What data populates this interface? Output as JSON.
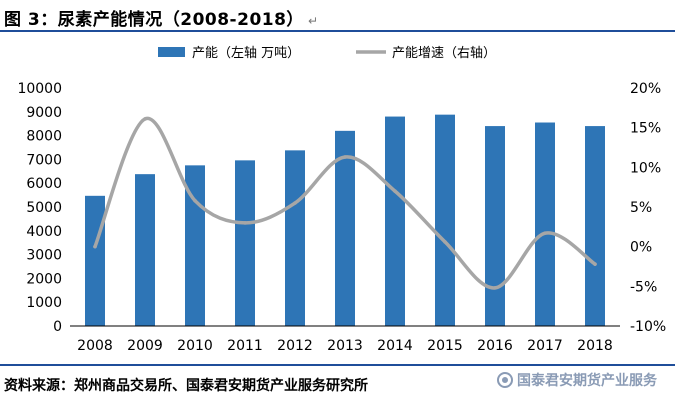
{
  "header": {
    "title": "图 3：尿素产能情况（2008-2018）"
  },
  "footer": {
    "source": "资料来源：郑州商品交易所、国泰君安期货产业服务研究所",
    "watermark": "国泰君安期货产业服务"
  },
  "chart_data": {
    "type": "bar+line",
    "title": "",
    "categories": [
      "2008",
      "2009",
      "2010",
      "2011",
      "2012",
      "2013",
      "2014",
      "2015",
      "2016",
      "2017",
      "2018"
    ],
    "series": [
      {
        "name": "产能（左轴 万吨）",
        "type": "bar",
        "axis": "left",
        "color": "#2e75b6",
        "values": [
          5470,
          6380,
          6750,
          6960,
          7380,
          8200,
          8800,
          8880,
          8400,
          8550,
          8400
        ]
      },
      {
        "name": "产能增速（右轴）",
        "type": "line",
        "axis": "right",
        "color": "#a6a6a6",
        "values": [
          0.0,
          16.1,
          5.8,
          3.0,
          5.5,
          11.3,
          7.0,
          0.6,
          -5.2,
          1.7,
          -2.2
        ]
      }
    ],
    "left_axis": {
      "ylim": [
        0,
        10000
      ],
      "ticks": [
        "0",
        "1000",
        "2000",
        "3000",
        "4000",
        "5000",
        "6000",
        "7000",
        "8000",
        "9000",
        "10000"
      ]
    },
    "right_axis": {
      "ylim": [
        -10,
        20
      ],
      "ticks": [
        "-10%",
        "-5%",
        "0%",
        "5%",
        "10%",
        "15%",
        "20%"
      ]
    },
    "legend_position": "top-center",
    "grid": false
  }
}
